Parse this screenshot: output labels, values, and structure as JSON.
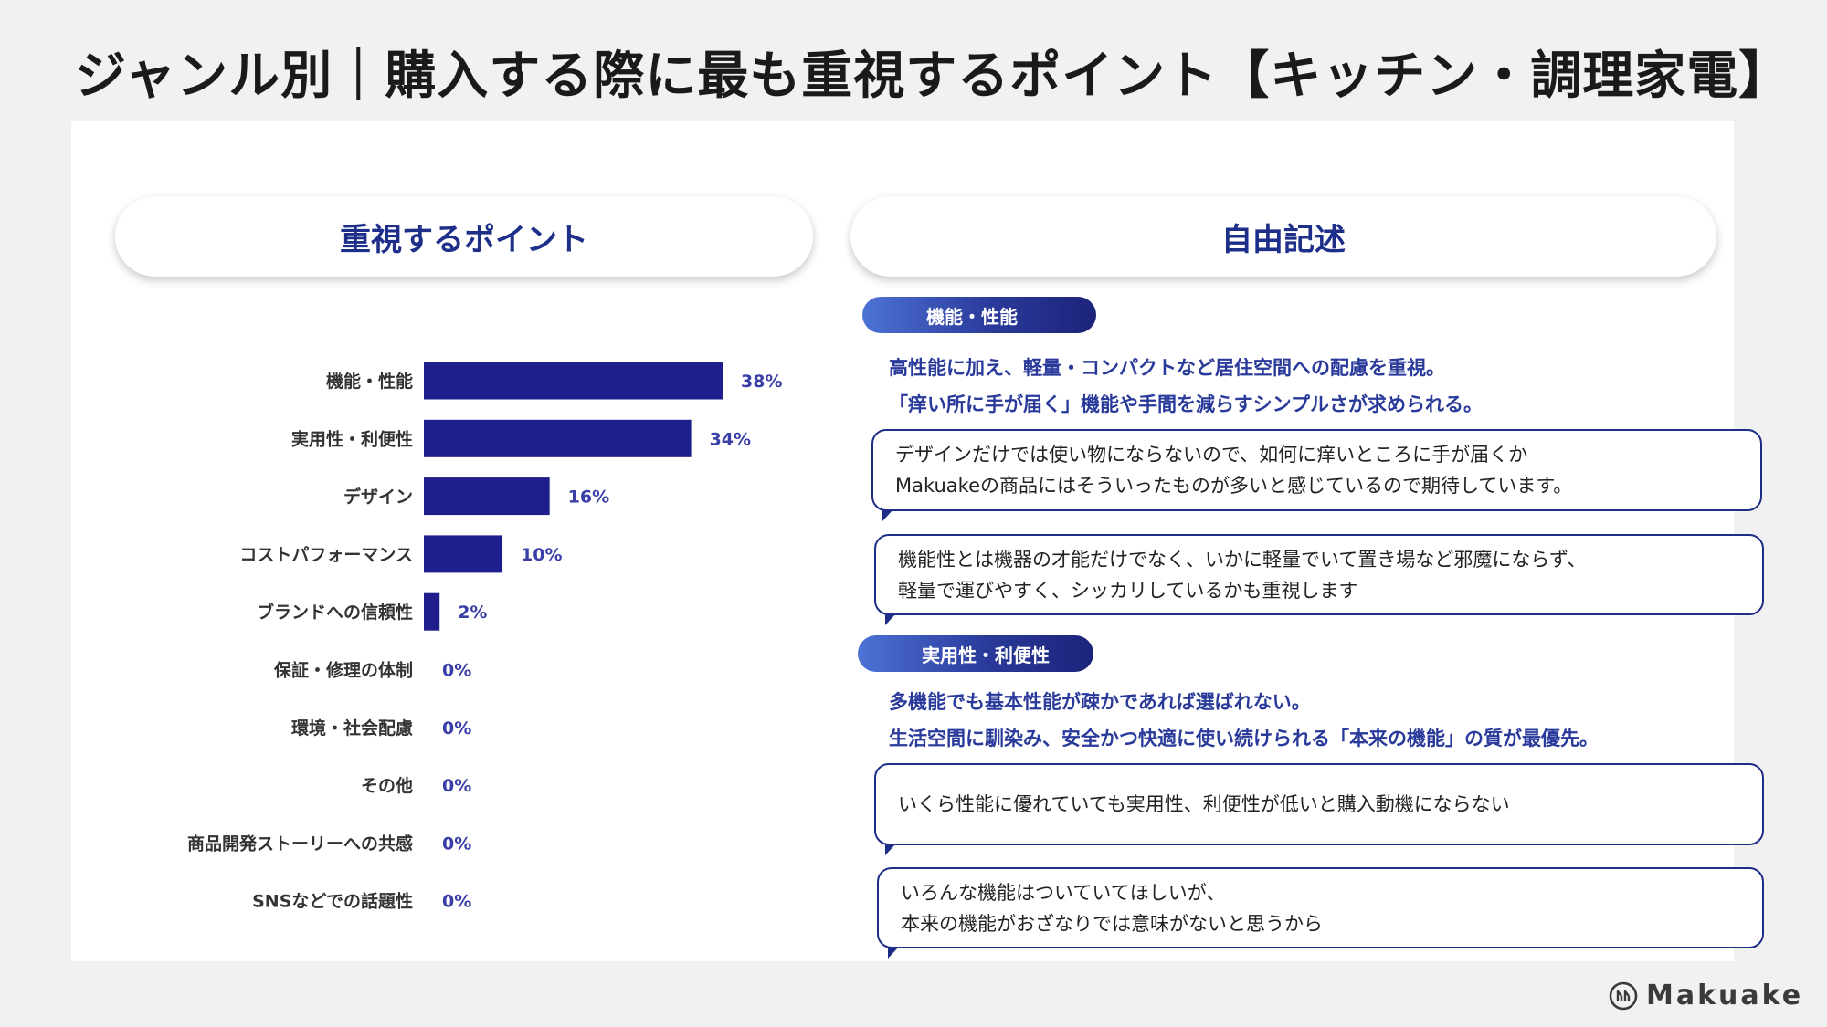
{
  "page_title": "ジャンル別｜購入する際に最も重視するポイント【キッチン・調理家電】",
  "left_header": "重視するポイント",
  "right_header": "自由記述",
  "chart_data": {
    "type": "bar",
    "orientation": "horizontal",
    "categories": [
      "機能・性能",
      "実用性・利便性",
      "デザイン",
      "コストパフォーマンス",
      "ブランドへの信頼性",
      "保証・修理の体制",
      "環境・社会配慮",
      "その他",
      "商品開発ストーリーへの共感",
      "SNSなどでの話題性"
    ],
    "values": [
      38,
      34,
      16,
      10,
      2,
      0,
      0,
      0,
      0,
      0
    ],
    "value_labels": [
      "38%",
      "34%",
      "16%",
      "10%",
      "2%",
      "0%",
      "0%",
      "0%",
      "0%",
      "0%"
    ],
    "unit": "%",
    "bar_color": "#1e1e8c",
    "label_color": "#3a3fa8",
    "grid": false,
    "axis_visible": false
  },
  "sections": [
    {
      "tag": "機能・性能",
      "summary": [
        "高性能に加え、軽量・コンパクトなど居住空間への配慮を重視。",
        "「痒い所に手が届く」機能や手間を減らすシンプルさが求められる。"
      ],
      "comments": [
        [
          "デザインだけでは使い物にならないので、如何に痒いところに手が届くか",
          "Makuakeの商品にはそういったものが多いと感じているので期待しています。"
        ],
        [
          "機能性とは機器の才能だけでなく、いかに軽量でいて置き場など邪魔にならず、",
          "軽量で運びやすく、シッカリしているかも重視します"
        ]
      ]
    },
    {
      "tag": "実用性・利便性",
      "summary": [
        "多機能でも基本性能が疎かであれば選ばれない。",
        "生活空間に馴染み、安全かつ快適に使い続けられる「本来の機能」の質が最優先。"
      ],
      "comments": [
        [
          "いくら性能に優れていても実用性、利便性が低いと購入動機にならない"
        ],
        [
          "いろんな機能はついていてほしいが、",
          "本来の機能がおざなりでは意味がないと思うから"
        ]
      ]
    }
  ],
  "logo_text": "Makuake",
  "colors": {
    "navy": "#1e1e8c",
    "heading": "#1e2f8a",
    "accent_text": "#2a3a9a"
  }
}
